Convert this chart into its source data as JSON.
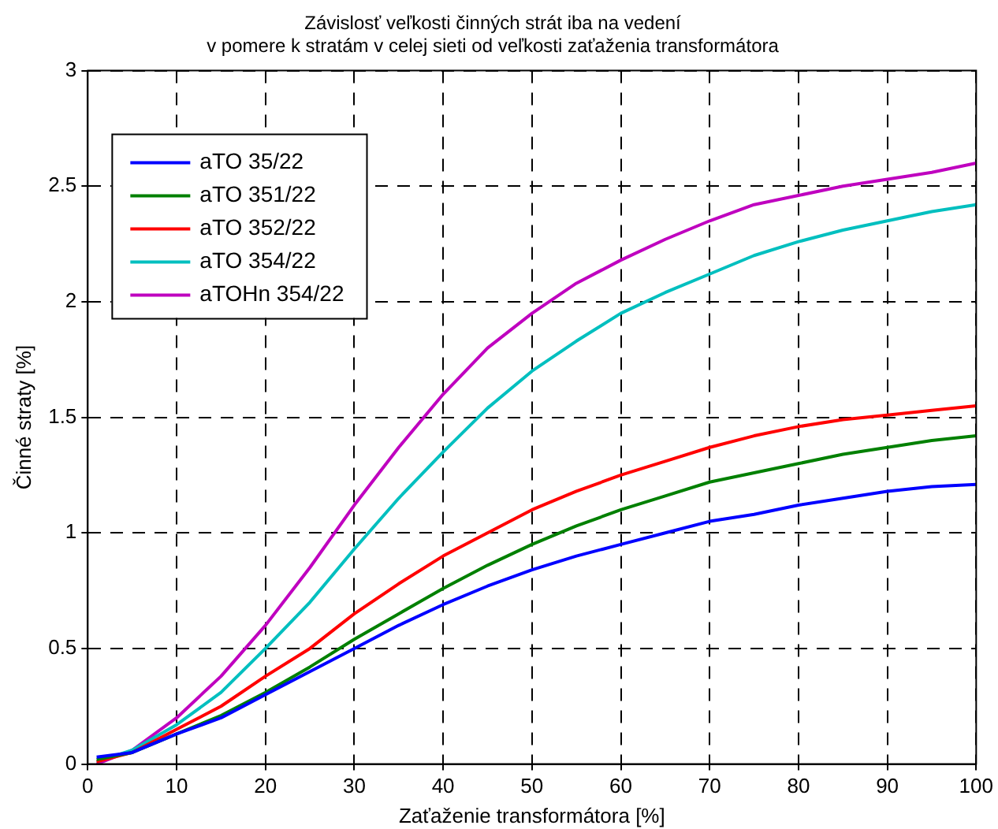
{
  "chart_data": {
    "type": "line",
    "title": [
      "Závislosť veľkosti činných strát iba na vedení",
      "v pomere k stratám v celej sieti od veľkosti zaťaženia transformátora"
    ],
    "xlabel": "Zaťaženie transformátora [%]",
    "ylabel": "Činné straty [%]",
    "x": [
      1,
      5,
      10,
      15,
      20,
      25,
      30,
      35,
      40,
      45,
      50,
      55,
      60,
      65,
      70,
      75,
      80,
      85,
      90,
      95,
      100
    ],
    "series": [
      {
        "name": "aTO 35/22",
        "color": "#0000ff",
        "values": [
          0.03,
          0.05,
          0.13,
          0.2,
          0.3,
          0.4,
          0.5,
          0.6,
          0.69,
          0.77,
          0.84,
          0.9,
          0.95,
          1.0,
          1.05,
          1.08,
          1.12,
          1.15,
          1.18,
          1.2,
          1.21
        ]
      },
      {
        "name": "aTO 351/22",
        "color": "#008000",
        "values": [
          0.02,
          0.05,
          0.13,
          0.21,
          0.31,
          0.42,
          0.54,
          0.65,
          0.76,
          0.86,
          0.95,
          1.03,
          1.1,
          1.16,
          1.22,
          1.26,
          1.3,
          1.34,
          1.37,
          1.4,
          1.42
        ]
      },
      {
        "name": "aTO 352/22",
        "color": "#ff0000",
        "values": [
          0.01,
          0.05,
          0.15,
          0.25,
          0.38,
          0.5,
          0.65,
          0.78,
          0.9,
          1.0,
          1.1,
          1.18,
          1.25,
          1.31,
          1.37,
          1.42,
          1.46,
          1.49,
          1.51,
          1.53,
          1.55
        ]
      },
      {
        "name": "aTO 354/22",
        "color": "#00bfbf",
        "values": [
          0.01,
          0.06,
          0.17,
          0.31,
          0.5,
          0.7,
          0.93,
          1.15,
          1.35,
          1.54,
          1.7,
          1.83,
          1.95,
          2.04,
          2.12,
          2.2,
          2.26,
          2.31,
          2.35,
          2.39,
          2.42
        ]
      },
      {
        "name": "aTOHn 354/22",
        "color": "#bf00bf",
        "values": [
          0.0,
          0.06,
          0.2,
          0.38,
          0.6,
          0.85,
          1.12,
          1.37,
          1.6,
          1.8,
          1.95,
          2.08,
          2.18,
          2.27,
          2.35,
          2.42,
          2.46,
          2.5,
          2.53,
          2.56,
          2.6
        ]
      }
    ],
    "xlim": [
      0,
      100
    ],
    "xticks": [
      0,
      10,
      20,
      30,
      40,
      50,
      60,
      70,
      80,
      90,
      100
    ],
    "ylim": [
      0,
      3
    ],
    "yticks": [
      0,
      0.5,
      1,
      1.5,
      2,
      2.5,
      3
    ],
    "grid": true,
    "legend": "top left",
    "marker": "none",
    "line_style": "solid"
  }
}
